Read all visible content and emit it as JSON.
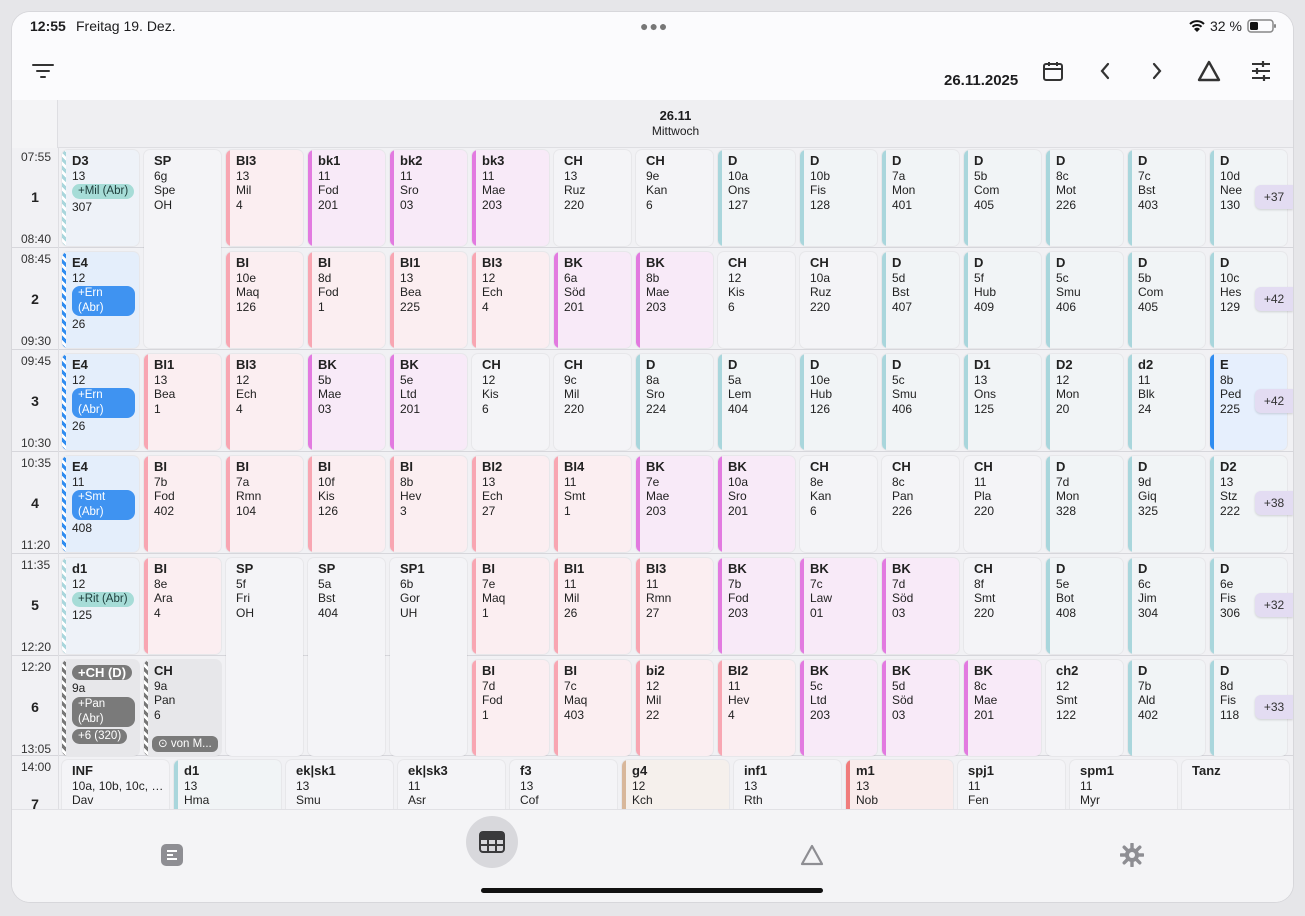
{
  "status": {
    "time": "12:55",
    "date": "Freitag 19. Dez.",
    "battery": "32 %"
  },
  "toolbar": {
    "date": "26.11.2025",
    "icons": [
      "filter-icon",
      "calendar-icon",
      "chevron-left-icon",
      "chevron-right-icon",
      "triangle-icon",
      "sliders-icon"
    ]
  },
  "day": {
    "date": "26.11",
    "weekday": "Mittwoch"
  },
  "periods": [
    {
      "num": "1",
      "start": "07:55",
      "end": "08:40"
    },
    {
      "num": "2",
      "start": "08:45",
      "end": "09:30"
    },
    {
      "num": "3",
      "start": "09:45",
      "end": "10:30"
    },
    {
      "num": "4",
      "start": "10:35",
      "end": "11:20"
    },
    {
      "num": "5",
      "start": "11:35",
      "end": "12:20"
    },
    {
      "num": "6",
      "start": "12:20",
      "end": "13:05"
    },
    {
      "num": "7",
      "start": "14:00",
      "end": ""
    }
  ],
  "colors": {
    "pink": "#f8a6b2",
    "magenta": "#e27ae0",
    "teal": "#a9d6dc",
    "blue": "#2f8cf0",
    "teal_pill": "#a6dcd7",
    "blue_pill": "#3f93f1",
    "gray_pill": "#7a7a7a"
  },
  "more_counts": [
    "+37",
    "+42",
    "+42",
    "+38",
    "+32",
    "+33"
  ],
  "lessons": [
    {
      "r": 0,
      "c": 0,
      "lines": [
        "D3",
        "13",
        "+Mil (Abr)",
        "307"
      ],
      "kind": "stripe-teal",
      "pill": 2,
      "pc": "teal"
    },
    {
      "r": 0,
      "c": 1,
      "span": 2,
      "lines": [
        "SP",
        "6g",
        "Spe",
        "OH"
      ],
      "kind": "plain"
    },
    {
      "r": 0,
      "c": 2,
      "lines": [
        "BI3",
        "13",
        "Mil",
        "4"
      ],
      "kind": "pink"
    },
    {
      "r": 0,
      "c": 3,
      "lines": [
        "bk1",
        "11",
        "Fod",
        "201"
      ],
      "kind": "magenta"
    },
    {
      "r": 0,
      "c": 4,
      "lines": [
        "bk2",
        "11",
        "Sro",
        "03"
      ],
      "kind": "magenta"
    },
    {
      "r": 0,
      "c": 5,
      "lines": [
        "bk3",
        "11",
        "Mae",
        "203"
      ],
      "kind": "magenta"
    },
    {
      "r": 0,
      "c": 6,
      "lines": [
        "CH",
        "13",
        "Ruz",
        "220"
      ],
      "kind": "plain"
    },
    {
      "r": 0,
      "c": 7,
      "lines": [
        "CH",
        "9e",
        "Kan",
        "6"
      ],
      "kind": "plain"
    },
    {
      "r": 0,
      "c": 8,
      "lines": [
        "D",
        "10a",
        "Ons",
        "127"
      ],
      "kind": "teal"
    },
    {
      "r": 0,
      "c": 9,
      "lines": [
        "D",
        "10b",
        "Fis",
        "128"
      ],
      "kind": "teal"
    },
    {
      "r": 0,
      "c": 10,
      "lines": [
        "D",
        "7a",
        "Mon",
        "401"
      ],
      "kind": "teal"
    },
    {
      "r": 0,
      "c": 11,
      "lines": [
        "D",
        "5b",
        "Com",
        "405"
      ],
      "kind": "teal"
    },
    {
      "r": 0,
      "c": 12,
      "lines": [
        "D",
        "8c",
        "Mot",
        "226"
      ],
      "kind": "teal"
    },
    {
      "r": 0,
      "c": 13,
      "lines": [
        "D",
        "7c",
        "Bst",
        "403"
      ],
      "kind": "teal"
    },
    {
      "r": 0,
      "c": 14,
      "lines": [
        "D",
        "10d",
        "Nee",
        "130"
      ],
      "kind": "teal"
    },
    {
      "r": 1,
      "c": 0,
      "lines": [
        "E4",
        "12",
        "+Ern (Abr)",
        "26"
      ],
      "kind": "stripe-blue",
      "pill": 2,
      "pc": "blue"
    },
    {
      "r": 1,
      "c": 2,
      "lines": [
        "BI",
        "10e",
        "Maq",
        "126"
      ],
      "kind": "pink"
    },
    {
      "r": 1,
      "c": 3,
      "lines": [
        "BI",
        "8d",
        "Fod",
        "1"
      ],
      "kind": "pink"
    },
    {
      "r": 1,
      "c": 4,
      "lines": [
        "BI1",
        "13",
        "Bea",
        "225"
      ],
      "kind": "pink"
    },
    {
      "r": 1,
      "c": 5,
      "lines": [
        "BI3",
        "12",
        "Ech",
        "4"
      ],
      "kind": "pink"
    },
    {
      "r": 1,
      "c": 6,
      "lines": [
        "BK",
        "6a",
        "Söd",
        "201"
      ],
      "kind": "magenta"
    },
    {
      "r": 1,
      "c": 7,
      "lines": [
        "BK",
        "8b",
        "Mae",
        "203"
      ],
      "kind": "magenta"
    },
    {
      "r": 1,
      "c": 8,
      "lines": [
        "CH",
        "12",
        "Kis",
        "6"
      ],
      "kind": "plain"
    },
    {
      "r": 1,
      "c": 9,
      "lines": [
        "CH",
        "10a",
        "Ruz",
        "220"
      ],
      "kind": "plain"
    },
    {
      "r": 1,
      "c": 10,
      "lines": [
        "D",
        "5d",
        "Bst",
        "407"
      ],
      "kind": "teal"
    },
    {
      "r": 1,
      "c": 11,
      "lines": [
        "D",
        "5f",
        "Hub",
        "409"
      ],
      "kind": "teal"
    },
    {
      "r": 1,
      "c": 12,
      "lines": [
        "D",
        "5c",
        "Smu",
        "406"
      ],
      "kind": "teal"
    },
    {
      "r": 1,
      "c": 13,
      "lines": [
        "D",
        "5b",
        "Com",
        "405"
      ],
      "kind": "teal"
    },
    {
      "r": 1,
      "c": 14,
      "lines": [
        "D",
        "10c",
        "Hes",
        "129"
      ],
      "kind": "teal"
    },
    {
      "r": 2,
      "c": 0,
      "lines": [
        "E4",
        "12",
        "+Ern (Abr)",
        "26"
      ],
      "kind": "stripe-blue",
      "pill": 2,
      "pc": "blue"
    },
    {
      "r": 2,
      "c": 1,
      "lines": [
        "BI1",
        "13",
        "Bea",
        "1"
      ],
      "kind": "pink"
    },
    {
      "r": 2,
      "c": 2,
      "lines": [
        "BI3",
        "12",
        "Ech",
        "4"
      ],
      "kind": "pink"
    },
    {
      "r": 2,
      "c": 3,
      "lines": [
        "BK",
        "5b",
        "Mae",
        "03"
      ],
      "kind": "magenta"
    },
    {
      "r": 2,
      "c": 4,
      "lines": [
        "BK",
        "5e",
        "Ltd",
        "201"
      ],
      "kind": "magenta"
    },
    {
      "r": 2,
      "c": 5,
      "lines": [
        "CH",
        "12",
        "Kis",
        "6"
      ],
      "kind": "plain"
    },
    {
      "r": 2,
      "c": 6,
      "lines": [
        "CH",
        "9c",
        "Mil",
        "220"
      ],
      "kind": "plain"
    },
    {
      "r": 2,
      "c": 7,
      "lines": [
        "D",
        "8a",
        "Sro",
        "224"
      ],
      "kind": "teal"
    },
    {
      "r": 2,
      "c": 8,
      "lines": [
        "D",
        "5a",
        "Lem",
        "404"
      ],
      "kind": "teal"
    },
    {
      "r": 2,
      "c": 9,
      "lines": [
        "D",
        "10e",
        "Hub",
        "126"
      ],
      "kind": "teal"
    },
    {
      "r": 2,
      "c": 10,
      "lines": [
        "D",
        "5c",
        "Smu",
        "406"
      ],
      "kind": "teal"
    },
    {
      "r": 2,
      "c": 11,
      "lines": [
        "D1",
        "13",
        "Ons",
        "125"
      ],
      "kind": "teal"
    },
    {
      "r": 2,
      "c": 12,
      "lines": [
        "D2",
        "12",
        "Mon",
        "20"
      ],
      "kind": "teal"
    },
    {
      "r": 2,
      "c": 13,
      "lines": [
        "d2",
        "11",
        "Blk",
        "24"
      ],
      "kind": "teal"
    },
    {
      "r": 2,
      "c": 14,
      "lines": [
        "E",
        "8b",
        "Ped",
        "225"
      ],
      "kind": "blue"
    },
    {
      "r": 3,
      "c": 0,
      "lines": [
        "E4",
        "11",
        "+Smt (Abr)",
        "408"
      ],
      "kind": "stripe-blue",
      "pill": 2,
      "pc": "blue"
    },
    {
      "r": 3,
      "c": 1,
      "lines": [
        "BI",
        "7b",
        "Fod",
        "402"
      ],
      "kind": "pink"
    },
    {
      "r": 3,
      "c": 2,
      "lines": [
        "BI",
        "7a",
        "Rmn",
        "104"
      ],
      "kind": "pink"
    },
    {
      "r": 3,
      "c": 3,
      "lines": [
        "BI",
        "10f",
        "Kis",
        "126"
      ],
      "kind": "pink"
    },
    {
      "r": 3,
      "c": 4,
      "lines": [
        "BI",
        "8b",
        "Hev",
        "3"
      ],
      "kind": "pink"
    },
    {
      "r": 3,
      "c": 5,
      "lines": [
        "BI2",
        "13",
        "Ech",
        "27"
      ],
      "kind": "pink"
    },
    {
      "r": 3,
      "c": 6,
      "lines": [
        "BI4",
        "11",
        "Smt",
        "1"
      ],
      "kind": "pink"
    },
    {
      "r": 3,
      "c": 7,
      "lines": [
        "BK",
        "7e",
        "Mae",
        "203"
      ],
      "kind": "magenta"
    },
    {
      "r": 3,
      "c": 8,
      "lines": [
        "BK",
        "10a",
        "Sro",
        "201"
      ],
      "kind": "magenta"
    },
    {
      "r": 3,
      "c": 9,
      "lines": [
        "CH",
        "8e",
        "Kan",
        "6"
      ],
      "kind": "plain"
    },
    {
      "r": 3,
      "c": 10,
      "lines": [
        "CH",
        "8c",
        "Pan",
        "226"
      ],
      "kind": "plain"
    },
    {
      "r": 3,
      "c": 11,
      "lines": [
        "CH",
        "11",
        "Pla",
        "220"
      ],
      "kind": "plain"
    },
    {
      "r": 3,
      "c": 12,
      "lines": [
        "D",
        "7d",
        "Mon",
        "328"
      ],
      "kind": "teal"
    },
    {
      "r": 3,
      "c": 13,
      "lines": [
        "D",
        "9d",
        "Giq",
        "325"
      ],
      "kind": "teal"
    },
    {
      "r": 3,
      "c": 14,
      "lines": [
        "D2",
        "13",
        "Stz",
        "222"
      ],
      "kind": "teal"
    },
    {
      "r": 4,
      "c": 0,
      "lines": [
        "d1",
        "12",
        "+Rit (Abr)",
        "125"
      ],
      "kind": "stripe-teal",
      "pill": 2,
      "pc": "teal"
    },
    {
      "r": 4,
      "c": 1,
      "lines": [
        "BI",
        "8e",
        "Ara",
        "4"
      ],
      "kind": "pink"
    },
    {
      "r": 4,
      "c": 2,
      "span": 2,
      "lines": [
        "SP",
        "5f",
        "Fri",
        "OH"
      ],
      "kind": "plain"
    },
    {
      "r": 4,
      "c": 3,
      "span": 2,
      "lines": [
        "SP",
        "5a",
        "Bst",
        "404"
      ],
      "kind": "plain"
    },
    {
      "r": 4,
      "c": 4,
      "span": 2,
      "lines": [
        "SP1",
        "6b",
        "Gor",
        "UH"
      ],
      "kind": "plain"
    },
    {
      "r": 4,
      "c": 5,
      "lines": [
        "BI",
        "7e",
        "Maq",
        "1"
      ],
      "kind": "pink"
    },
    {
      "r": 4,
      "c": 6,
      "lines": [
        "BI1",
        "11",
        "Mil",
        "26"
      ],
      "kind": "pink"
    },
    {
      "r": 4,
      "c": 7,
      "lines": [
        "BI3",
        "11",
        "Rmn",
        "27"
      ],
      "kind": "pink"
    },
    {
      "r": 4,
      "c": 8,
      "lines": [
        "BK",
        "7b",
        "Fod",
        "203"
      ],
      "kind": "magenta"
    },
    {
      "r": 4,
      "c": 9,
      "lines": [
        "BK",
        "7c",
        "Law",
        "01"
      ],
      "kind": "magenta"
    },
    {
      "r": 4,
      "c": 10,
      "lines": [
        "BK",
        "7d",
        "Söd",
        "03"
      ],
      "kind": "magenta"
    },
    {
      "r": 4,
      "c": 11,
      "lines": [
        "CH",
        "8f",
        "Smt",
        "220"
      ],
      "kind": "plain"
    },
    {
      "r": 4,
      "c": 12,
      "lines": [
        "D",
        "5e",
        "Bot",
        "408"
      ],
      "kind": "teal"
    },
    {
      "r": 4,
      "c": 13,
      "lines": [
        "D",
        "6c",
        "Jim",
        "304"
      ],
      "kind": "teal"
    },
    {
      "r": 4,
      "c": 14,
      "lines": [
        "D",
        "6e",
        "Fis",
        "306"
      ],
      "kind": "teal"
    },
    {
      "r": 5,
      "c": 0,
      "lines": [
        "+CH (D)",
        "9a",
        "+Pan (Abr)",
        "+6 (320)"
      ],
      "kind": "stripe-gray",
      "gray": true
    },
    {
      "r": 5,
      "c": 1,
      "lines": [
        "CH",
        "9a",
        "Pan",
        "6"
      ],
      "kind": "stripe-gray",
      "vonm": "von M..."
    },
    {
      "r": 5,
      "c": 5,
      "lines": [
        "BI",
        "7d",
        "Fod",
        "1"
      ],
      "kind": "pink"
    },
    {
      "r": 5,
      "c": 6,
      "lines": [
        "BI",
        "7c",
        "Maq",
        "403"
      ],
      "kind": "pink"
    },
    {
      "r": 5,
      "c": 7,
      "lines": [
        "bi2",
        "12",
        "Mil",
        "22"
      ],
      "kind": "pink"
    },
    {
      "r": 5,
      "c": 8,
      "lines": [
        "BI2",
        "11",
        "Hev",
        "4"
      ],
      "kind": "pink"
    },
    {
      "r": 5,
      "c": 9,
      "lines": [
        "BK",
        "5c",
        "Ltd",
        "203"
      ],
      "kind": "magenta"
    },
    {
      "r": 5,
      "c": 10,
      "lines": [
        "BK",
        "5d",
        "Söd",
        "03"
      ],
      "kind": "magenta"
    },
    {
      "r": 5,
      "c": 11,
      "lines": [
        "BK",
        "8c",
        "Mae",
        "201"
      ],
      "kind": "magenta"
    },
    {
      "r": 5,
      "c": 12,
      "lines": [
        "ch2",
        "12",
        "Smt",
        "122"
      ],
      "kind": "plain"
    },
    {
      "r": 5,
      "c": 13,
      "lines": [
        "D",
        "7b",
        "Ald",
        "402"
      ],
      "kind": "teal"
    },
    {
      "r": 5,
      "c": 14,
      "lines": [
        "D",
        "8d",
        "Fis",
        "118"
      ],
      "kind": "teal"
    }
  ],
  "row7": [
    {
      "lines": [
        "INF",
        "10a, 10b, 10c, 10...",
        "Dav"
      ],
      "kind": "plain"
    },
    {
      "lines": [
        "d1",
        "13",
        "Hma"
      ],
      "kind": "teal"
    },
    {
      "lines": [
        "ek|sk1",
        "13",
        "Smu"
      ],
      "kind": "plain"
    },
    {
      "lines": [
        "ek|sk3",
        "11",
        "Asr"
      ],
      "kind": "plain"
    },
    {
      "lines": [
        "f3",
        "13",
        "Cof"
      ],
      "kind": "plain"
    },
    {
      "lines": [
        "g4",
        "12",
        "Kch"
      ],
      "kind": "tan"
    },
    {
      "lines": [
        "inf1",
        "13",
        "Rth"
      ],
      "kind": "plain"
    },
    {
      "lines": [
        "m1",
        "13",
        "Nob"
      ],
      "kind": "red"
    },
    {
      "lines": [
        "spj1",
        "11",
        "Fen"
      ],
      "kind": "plain"
    },
    {
      "lines": [
        "spm1",
        "11",
        "Myr"
      ],
      "kind": "plain"
    },
    {
      "lines": [
        "Tanz",
        "",
        ""
      ],
      "kind": "plain"
    }
  ],
  "tabs": [
    "list-icon",
    "grid-icon",
    "triangle-icon",
    "gear-icon"
  ]
}
